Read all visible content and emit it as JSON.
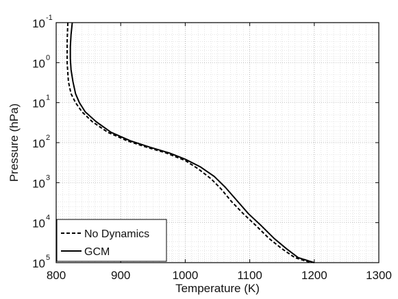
{
  "chart_data": {
    "type": "line",
    "title": "",
    "xlabel": "Temperature (K)",
    "ylabel": "Pressure (hPa)",
    "xlim": [
      800,
      1300
    ],
    "ylim": [
      0.1,
      100000
    ],
    "y_scale": "log",
    "y_inverted": true,
    "grid": true,
    "legend_position": "bottom-left",
    "x_ticks": [
      "800",
      "900",
      "1000",
      "1100",
      "1200",
      "1300"
    ],
    "y_ticks": [
      {
        "base": "10",
        "exp": "-1",
        "value": 0.1
      },
      {
        "base": "10",
        "exp": "0",
        "value": 1
      },
      {
        "base": "10",
        "exp": "1",
        "value": 10
      },
      {
        "base": "10",
        "exp": "2",
        "value": 100
      },
      {
        "base": "10",
        "exp": "3",
        "value": 1000
      },
      {
        "base": "10",
        "exp": "4",
        "value": 10000
      },
      {
        "base": "10",
        "exp": "5",
        "value": 100000
      }
    ],
    "series": [
      {
        "name": "No Dynamics",
        "style": "dashed",
        "color": "#000000",
        "points": [
          [
            818,
            0.1
          ],
          [
            817,
            0.3
          ],
          [
            817,
            1
          ],
          [
            819,
            3
          ],
          [
            823,
            6
          ],
          [
            830,
            10
          ],
          [
            840,
            17
          ],
          [
            856,
            30
          ],
          [
            880,
            55
          ],
          [
            910,
            90
          ],
          [
            940,
            130
          ],
          [
            970,
            180
          ],
          [
            1000,
            280
          ],
          [
            1020,
            450
          ],
          [
            1040,
            800
          ],
          [
            1055,
            1400
          ],
          [
            1072,
            3000
          ],
          [
            1090,
            6000
          ],
          [
            1110,
            12000
          ],
          [
            1130,
            25000
          ],
          [
            1150,
            45000
          ],
          [
            1170,
            75000
          ],
          [
            1195,
            100000
          ]
        ]
      },
      {
        "name": "GCM",
        "style": "solid",
        "color": "#000000",
        "points": [
          [
            825,
            0.1
          ],
          [
            823,
            0.2
          ],
          [
            822,
            0.4
          ],
          [
            822,
            0.8
          ],
          [
            823,
            1.5
          ],
          [
            826,
            3
          ],
          [
            830,
            6
          ],
          [
            836,
            10
          ],
          [
            845,
            17
          ],
          [
            862,
            30
          ],
          [
            885,
            55
          ],
          [
            915,
            90
          ],
          [
            945,
            130
          ],
          [
            975,
            180
          ],
          [
            1000,
            260
          ],
          [
            1023,
            400
          ],
          [
            1045,
            700
          ],
          [
            1062,
            1300
          ],
          [
            1080,
            2800
          ],
          [
            1098,
            6000
          ],
          [
            1118,
            12000
          ],
          [
            1138,
            25000
          ],
          [
            1157,
            45000
          ],
          [
            1175,
            75000
          ],
          [
            1200,
            100000
          ]
        ]
      }
    ]
  }
}
